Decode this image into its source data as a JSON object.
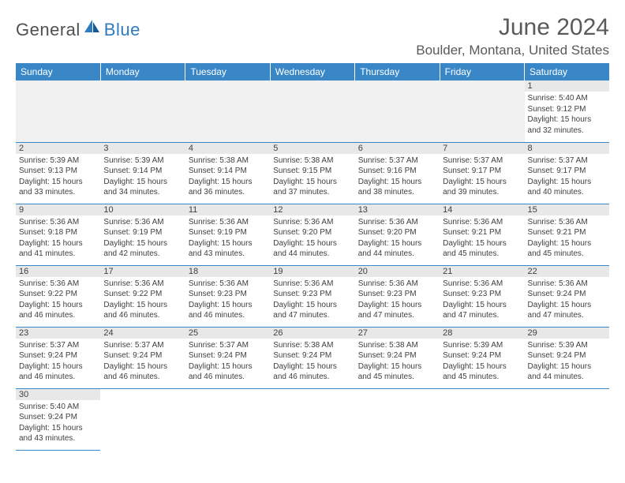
{
  "brand": {
    "part1": "General",
    "part2": "Blue"
  },
  "title": "June 2024",
  "location": "Boulder, Montana, United States",
  "colors": {
    "header_bg": "#3a87c8",
    "header_text": "#ffffff",
    "daynum_bg": "#e8e8e8",
    "border": "#3a87c8",
    "text": "#404040",
    "title_text": "#5a5a5a",
    "logo_gray": "#505050",
    "logo_blue": "#2d7bc0"
  },
  "weekdays": [
    "Sunday",
    "Monday",
    "Tuesday",
    "Wednesday",
    "Thursday",
    "Friday",
    "Saturday"
  ],
  "weeks": [
    [
      null,
      null,
      null,
      null,
      null,
      null,
      {
        "n": "1",
        "sunrise": "5:40 AM",
        "sunset": "9:12 PM",
        "dl1": "15 hours",
        "dl2": "and 32 minutes."
      }
    ],
    [
      {
        "n": "2",
        "sunrise": "5:39 AM",
        "sunset": "9:13 PM",
        "dl1": "15 hours",
        "dl2": "and 33 minutes."
      },
      {
        "n": "3",
        "sunrise": "5:39 AM",
        "sunset": "9:14 PM",
        "dl1": "15 hours",
        "dl2": "and 34 minutes."
      },
      {
        "n": "4",
        "sunrise": "5:38 AM",
        "sunset": "9:14 PM",
        "dl1": "15 hours",
        "dl2": "and 36 minutes."
      },
      {
        "n": "5",
        "sunrise": "5:38 AM",
        "sunset": "9:15 PM",
        "dl1": "15 hours",
        "dl2": "and 37 minutes."
      },
      {
        "n": "6",
        "sunrise": "5:37 AM",
        "sunset": "9:16 PM",
        "dl1": "15 hours",
        "dl2": "and 38 minutes."
      },
      {
        "n": "7",
        "sunrise": "5:37 AM",
        "sunset": "9:17 PM",
        "dl1": "15 hours",
        "dl2": "and 39 minutes."
      },
      {
        "n": "8",
        "sunrise": "5:37 AM",
        "sunset": "9:17 PM",
        "dl1": "15 hours",
        "dl2": "and 40 minutes."
      }
    ],
    [
      {
        "n": "9",
        "sunrise": "5:36 AM",
        "sunset": "9:18 PM",
        "dl1": "15 hours",
        "dl2": "and 41 minutes."
      },
      {
        "n": "10",
        "sunrise": "5:36 AM",
        "sunset": "9:19 PM",
        "dl1": "15 hours",
        "dl2": "and 42 minutes."
      },
      {
        "n": "11",
        "sunrise": "5:36 AM",
        "sunset": "9:19 PM",
        "dl1": "15 hours",
        "dl2": "and 43 minutes."
      },
      {
        "n": "12",
        "sunrise": "5:36 AM",
        "sunset": "9:20 PM",
        "dl1": "15 hours",
        "dl2": "and 44 minutes."
      },
      {
        "n": "13",
        "sunrise": "5:36 AM",
        "sunset": "9:20 PM",
        "dl1": "15 hours",
        "dl2": "and 44 minutes."
      },
      {
        "n": "14",
        "sunrise": "5:36 AM",
        "sunset": "9:21 PM",
        "dl1": "15 hours",
        "dl2": "and 45 minutes."
      },
      {
        "n": "15",
        "sunrise": "5:36 AM",
        "sunset": "9:21 PM",
        "dl1": "15 hours",
        "dl2": "and 45 minutes."
      }
    ],
    [
      {
        "n": "16",
        "sunrise": "5:36 AM",
        "sunset": "9:22 PM",
        "dl1": "15 hours",
        "dl2": "and 46 minutes."
      },
      {
        "n": "17",
        "sunrise": "5:36 AM",
        "sunset": "9:22 PM",
        "dl1": "15 hours",
        "dl2": "and 46 minutes."
      },
      {
        "n": "18",
        "sunrise": "5:36 AM",
        "sunset": "9:23 PM",
        "dl1": "15 hours",
        "dl2": "and 46 minutes."
      },
      {
        "n": "19",
        "sunrise": "5:36 AM",
        "sunset": "9:23 PM",
        "dl1": "15 hours",
        "dl2": "and 47 minutes."
      },
      {
        "n": "20",
        "sunrise": "5:36 AM",
        "sunset": "9:23 PM",
        "dl1": "15 hours",
        "dl2": "and 47 minutes."
      },
      {
        "n": "21",
        "sunrise": "5:36 AM",
        "sunset": "9:23 PM",
        "dl1": "15 hours",
        "dl2": "and 47 minutes."
      },
      {
        "n": "22",
        "sunrise": "5:36 AM",
        "sunset": "9:24 PM",
        "dl1": "15 hours",
        "dl2": "and 47 minutes."
      }
    ],
    [
      {
        "n": "23",
        "sunrise": "5:37 AM",
        "sunset": "9:24 PM",
        "dl1": "15 hours",
        "dl2": "and 46 minutes."
      },
      {
        "n": "24",
        "sunrise": "5:37 AM",
        "sunset": "9:24 PM",
        "dl1": "15 hours",
        "dl2": "and 46 minutes."
      },
      {
        "n": "25",
        "sunrise": "5:37 AM",
        "sunset": "9:24 PM",
        "dl1": "15 hours",
        "dl2": "and 46 minutes."
      },
      {
        "n": "26",
        "sunrise": "5:38 AM",
        "sunset": "9:24 PM",
        "dl1": "15 hours",
        "dl2": "and 46 minutes."
      },
      {
        "n": "27",
        "sunrise": "5:38 AM",
        "sunset": "9:24 PM",
        "dl1": "15 hours",
        "dl2": "and 45 minutes."
      },
      {
        "n": "28",
        "sunrise": "5:39 AM",
        "sunset": "9:24 PM",
        "dl1": "15 hours",
        "dl2": "and 45 minutes."
      },
      {
        "n": "29",
        "sunrise": "5:39 AM",
        "sunset": "9:24 PM",
        "dl1": "15 hours",
        "dl2": "and 44 minutes."
      }
    ],
    [
      {
        "n": "30",
        "sunrise": "5:40 AM",
        "sunset": "9:24 PM",
        "dl1": "15 hours",
        "dl2": "and 43 minutes."
      },
      null,
      null,
      null,
      null,
      null,
      null
    ]
  ],
  "labels": {
    "sunrise": "Sunrise: ",
    "sunset": "Sunset: ",
    "daylight": "Daylight: "
  }
}
